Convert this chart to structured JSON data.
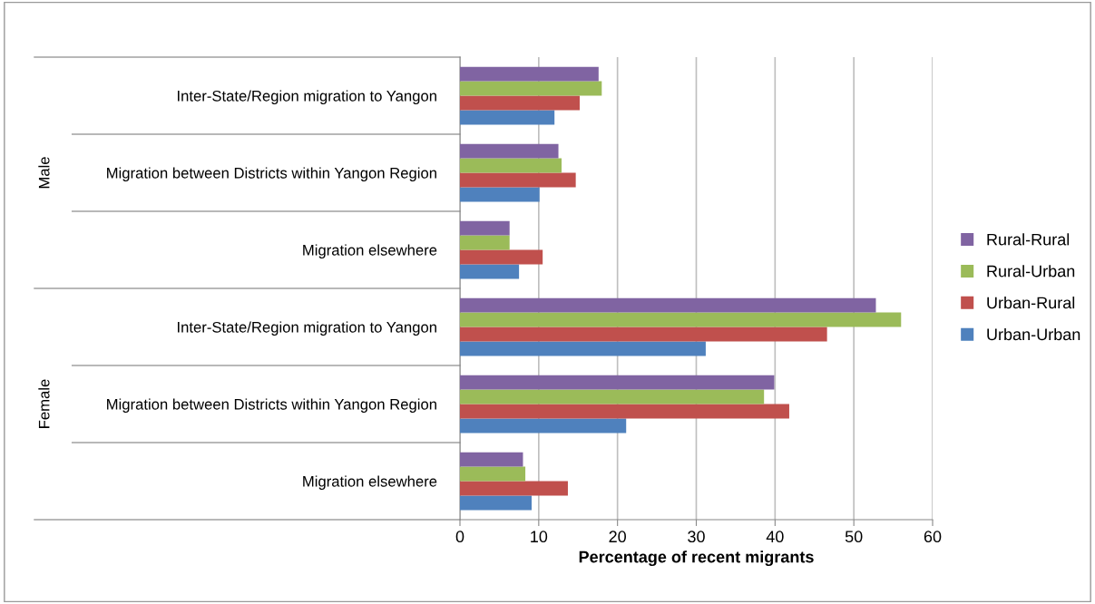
{
  "chart_data": {
    "type": "bar",
    "orientation": "horizontal",
    "xlabel": "Percentage of recent migrants",
    "categories": [
      "Inter-State/Region migration to Yangon",
      "Migration between Districts within Yangon Region",
      "Migration elsewhere",
      "Inter-State/Region migration to Yangon",
      "Migration between Districts within Yangon Region",
      "Migration elsewhere"
    ],
    "annotations": [
      "Male",
      "Female"
    ],
    "series": [
      {
        "name": "Urban-Urban",
        "color": "#4f81bd",
        "values": [
          12.0,
          10.1,
          7.5,
          31.2,
          21.1,
          9.1
        ]
      },
      {
        "name": "Urban-Rural",
        "color": "#c0504d",
        "values": [
          15.2,
          14.7,
          10.5,
          46.6,
          41.8,
          13.7
        ]
      },
      {
        "name": "Rural-Urban",
        "color": "#9bbb59",
        "values": [
          18.0,
          12.9,
          6.3,
          56.0,
          38.6,
          8.3
        ]
      },
      {
        "name": "Rural-Rural",
        "color": "#8064a2",
        "values": [
          17.6,
          12.5,
          6.3,
          52.8,
          39.9,
          8.0
        ]
      }
    ],
    "xlim": [
      0,
      60
    ],
    "xticks": [
      0,
      10,
      20,
      30,
      40,
      50,
      60
    ],
    "grid": "x",
    "legend": "right"
  }
}
